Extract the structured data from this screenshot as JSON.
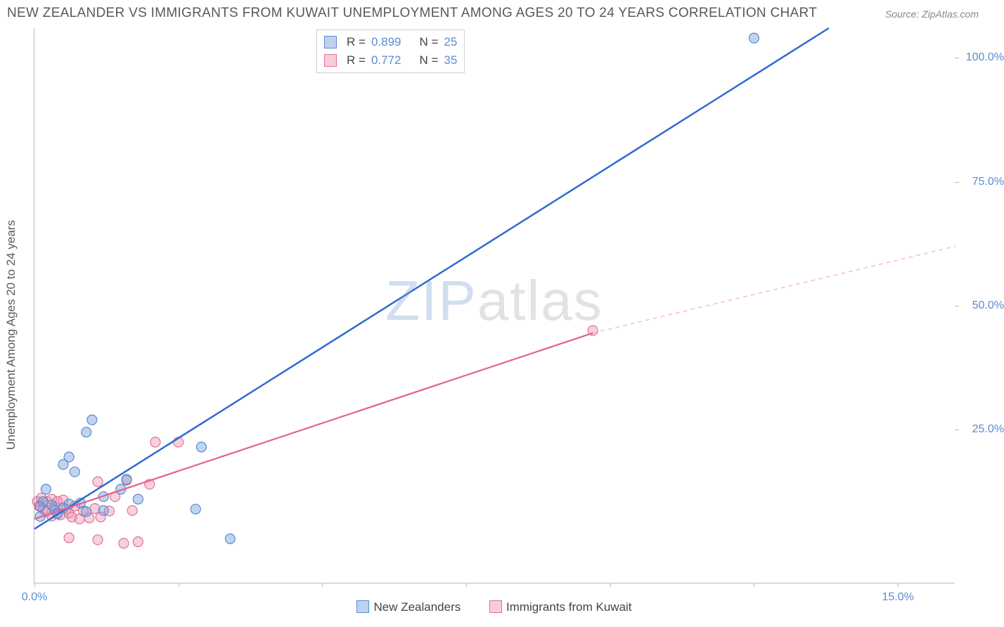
{
  "title": "NEW ZEALANDER VS IMMIGRANTS FROM KUWAIT UNEMPLOYMENT AMONG AGES 20 TO 24 YEARS CORRELATION CHART",
  "source_label": "Source: ",
  "source_name": "ZipAtlas.com",
  "y_axis_label": "Unemployment Among Ages 20 to 24 years",
  "watermark_a": "ZIP",
  "watermark_b": "atlas",
  "chart": {
    "type": "scatter-with-regression",
    "background_color": "#ffffff",
    "axis_color": "#b9b9b9",
    "label_color": "#555a60",
    "tick_label_color": "#5b8bd4",
    "xlim": [
      0,
      16.0
    ],
    "ylim": [
      -6,
      106
    ],
    "x_ticks": [
      0,
      2.5,
      5.0,
      7.5,
      10.0,
      12.5,
      15.0
    ],
    "x_tick_labels": {
      "0": "0.0%",
      "15": "15.0%"
    },
    "y_ticks": [
      25,
      50,
      75,
      100
    ],
    "y_tick_labels": {
      "25": "25.0%",
      "50": "50.0%",
      "75": "75.0%",
      "100": "100.0%"
    },
    "title_fontsize": 19,
    "tick_fontsize": 16,
    "axis_label_fontsize": 17
  },
  "series": {
    "nz": {
      "label": "New Zealanders",
      "R": "0.899",
      "N": "25",
      "marker_fill": "rgba(120,160,215,0.45)",
      "marker_stroke": "#5b8bd4",
      "marker_radius": 7,
      "line_color": "#2f6bd0",
      "line_width": 2.5,
      "swatch_fill": "#bcd3ef",
      "swatch_border": "#5b8bd4",
      "regression": {
        "x1": 0,
        "y1": 5,
        "x2": 13.8,
        "y2": 106
      },
      "points": [
        [
          12.5,
          104
        ],
        [
          1.0,
          27
        ],
        [
          0.9,
          24.5
        ],
        [
          0.5,
          18
        ],
        [
          0.6,
          19.5
        ],
        [
          0.7,
          16.5
        ],
        [
          2.9,
          21.5
        ],
        [
          1.6,
          15
        ],
        [
          1.8,
          11
        ],
        [
          1.2,
          11.5
        ],
        [
          0.2,
          13
        ],
        [
          0.15,
          10.5
        ],
        [
          0.1,
          9.5
        ],
        [
          0.1,
          7.5
        ],
        [
          0.3,
          9.8
        ],
        [
          0.35,
          8.8
        ],
        [
          0.4,
          8
        ],
        [
          0.5,
          9.2
        ],
        [
          0.6,
          10
        ],
        [
          0.8,
          10.2
        ],
        [
          0.9,
          8.5
        ],
        [
          1.2,
          8.7
        ],
        [
          2.8,
          9
        ],
        [
          3.4,
          3
        ],
        [
          1.5,
          13
        ]
      ]
    },
    "kw": {
      "label": "Immigrants from Kuwait",
      "R": "0.772",
      "N": "35",
      "marker_fill": "rgba(235,140,170,0.40)",
      "marker_stroke": "#e46f98",
      "marker_radius": 7,
      "line_color": "#e46289",
      "line_width": 2.2,
      "dashed_color": "#f4b8c9",
      "swatch_fill": "#f6cddb",
      "swatch_border": "#e46f98",
      "regression_solid": {
        "x1": 0,
        "y1": 7,
        "x2": 9.7,
        "y2": 44.5
      },
      "regression_dashed": {
        "x1": 9.7,
        "y1": 44.5,
        "x2": 16.0,
        "y2": 62
      },
      "points": [
        [
          9.7,
          45
        ],
        [
          2.1,
          22.5
        ],
        [
          2.5,
          22.5
        ],
        [
          1.1,
          14.5
        ],
        [
          1.6,
          14.8
        ],
        [
          2.0,
          14
        ],
        [
          0.05,
          10.5
        ],
        [
          0.08,
          9.6
        ],
        [
          0.12,
          11.2
        ],
        [
          0.15,
          9.0
        ],
        [
          0.2,
          8.4
        ],
        [
          0.22,
          10.5
        ],
        [
          0.3,
          11
        ],
        [
          0.3,
          7.6
        ],
        [
          0.35,
          9.4
        ],
        [
          0.4,
          10.5
        ],
        [
          0.4,
          8.2
        ],
        [
          0.45,
          7.8
        ],
        [
          0.5,
          10.8
        ],
        [
          0.55,
          9.0
        ],
        [
          0.6,
          8.2
        ],
        [
          0.65,
          7.4
        ],
        [
          0.7,
          9.6
        ],
        [
          0.78,
          7.0
        ],
        [
          0.85,
          8.6
        ],
        [
          0.95,
          7.2
        ],
        [
          1.05,
          9.1
        ],
        [
          1.15,
          7.4
        ],
        [
          1.3,
          8.6
        ],
        [
          1.4,
          11.5
        ],
        [
          1.7,
          8.7
        ],
        [
          0.6,
          3.2
        ],
        [
          1.1,
          2.8
        ],
        [
          1.55,
          2.1
        ],
        [
          1.8,
          2.4
        ]
      ]
    }
  }
}
